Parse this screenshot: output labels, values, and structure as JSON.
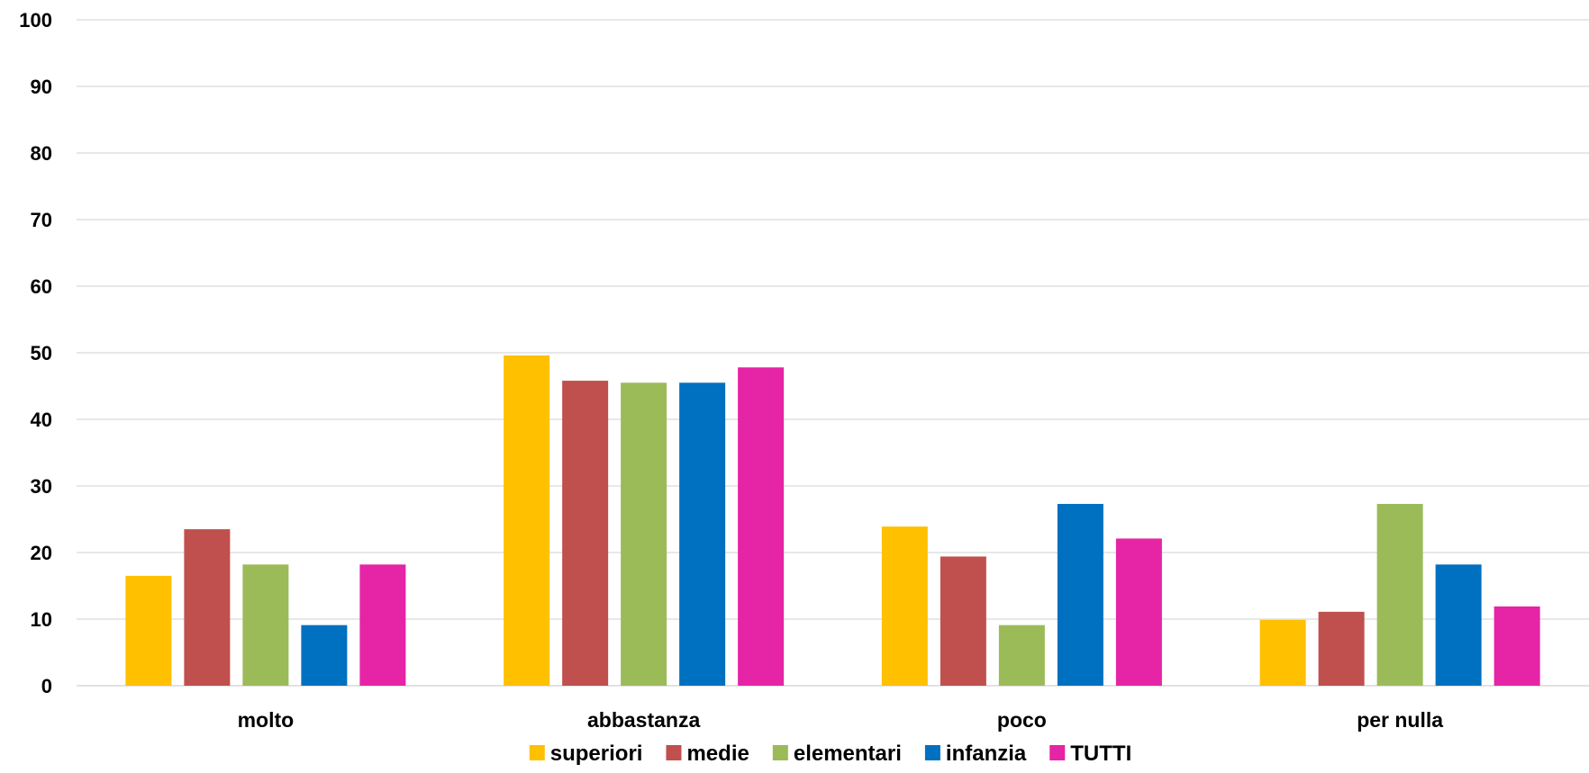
{
  "chart_data": {
    "type": "bar",
    "categories": [
      "molto",
      "abbastanza",
      "poco",
      "per nulla"
    ],
    "series": [
      {
        "name": "superiori",
        "color": "#FFC000",
        "values": [
          16.5,
          49.6,
          23.9,
          9.9
        ]
      },
      {
        "name": "medie",
        "color": "#C0504D",
        "values": [
          23.5,
          45.8,
          19.4,
          11.1
        ]
      },
      {
        "name": "elementari",
        "color": "#9BBB59",
        "values": [
          18.2,
          45.5,
          9.1,
          27.3
        ]
      },
      {
        "name": "infanzia",
        "color": "#0070C0",
        "values": [
          9.1,
          45.5,
          27.3,
          18.2
        ]
      },
      {
        "name": "TUTTI",
        "color": "#E524A6",
        "values": [
          18.2,
          47.8,
          22.1,
          11.9
        ]
      }
    ],
    "yticks": [
      "0",
      "10",
      "20",
      "30",
      "40",
      "50",
      "60",
      "70",
      "80",
      "90",
      "100"
    ],
    "ylim": [
      0,
      100
    ],
    "grid": true,
    "legend": "bottom",
    "title": "",
    "xlabel": "",
    "ylabel": ""
  }
}
